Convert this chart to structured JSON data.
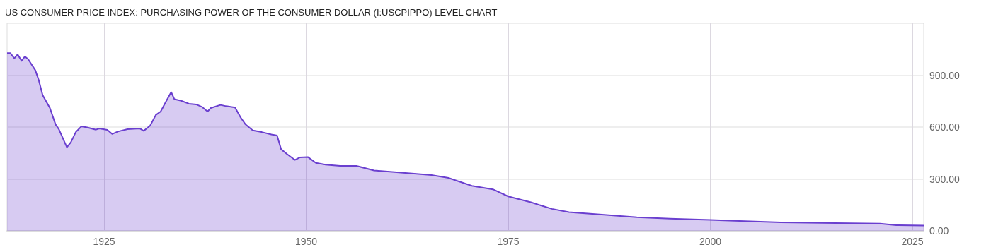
{
  "chart_data": {
    "type": "area",
    "title": "US CONSUMER PRICE INDEX: PURCHASING POWER OF THE CONSUMER DOLLAR (I:USCPIPPO) LEVEL CHART",
    "series": [
      {
        "color": "#6a3fcf",
        "x": [
          1913.0,
          1913.4,
          1913.9,
          1914.3,
          1914.8,
          1915.2,
          1915.6,
          1916.5,
          1916.9,
          1917.4,
          1918.3,
          1919.0,
          1919.4,
          1920.4,
          1920.9,
          1921.5,
          1922.2,
          1922.9,
          1924.0,
          1924.4,
          1925.4,
          1926.0,
          1926.7,
          1927.9,
          1929.4,
          1929.9,
          1930.7,
          1931.4,
          1932.0,
          1932.7,
          1933.3,
          1933.7,
          1934.6,
          1935.5,
          1936.4,
          1937.1,
          1937.8,
          1938.2,
          1939.4,
          1940.1,
          1941.2,
          1941.9,
          1942.5,
          1943.4,
          1944.5,
          1945.7,
          1946.4,
          1946.9,
          1947.6,
          1948.6,
          1949.2,
          1950.2,
          1951.2,
          1952.4,
          1954.2,
          1956.2,
          1958.4,
          1961.2,
          1965.5,
          1967.6,
          1970.5,
          1973.1,
          1975.0,
          1977.8,
          1980.4,
          1982.5,
          1985.7,
          1990.9,
          1995.0,
          2000.0,
          2008.7,
          2015.5,
          2021.0,
          2023.0,
          2026.4
        ],
        "values": [
          1028,
          1028,
          997,
          1020,
          983,
          1008,
          993,
          928,
          874,
          785,
          710,
          615,
          588,
          483,
          513,
          571,
          604,
          598,
          585,
          592,
          584,
          560,
          574,
          588,
          592,
          578,
          608,
          670,
          690,
          751,
          802,
          761,
          751,
          735,
          731,
          717,
          690,
          710,
          728,
          721,
          713,
          655,
          615,
          581,
          571,
          557,
          551,
          472,
          445,
          410,
          424,
          427,
          393,
          383,
          376,
          376,
          349,
          339,
          322,
          306,
          260,
          240,
          199,
          165,
          127,
          108,
          97,
          79,
          70,
          63,
          49,
          45,
          42,
          33,
          31
        ]
      }
    ],
    "xlim": [
      1913,
      2026.4
    ],
    "xticks": [
      1925,
      1950,
      1975,
      2000,
      2025
    ],
    "ylim": [
      0,
      1200
    ],
    "yticks": [
      {
        "value": 0,
        "label": "0.00"
      },
      {
        "value": 300,
        "label": "300.00"
      },
      {
        "value": 600,
        "label": "600.00"
      },
      {
        "value": 900,
        "label": "900.00"
      }
    ],
    "grid": true,
    "marker": "none",
    "line_style": "solid"
  }
}
